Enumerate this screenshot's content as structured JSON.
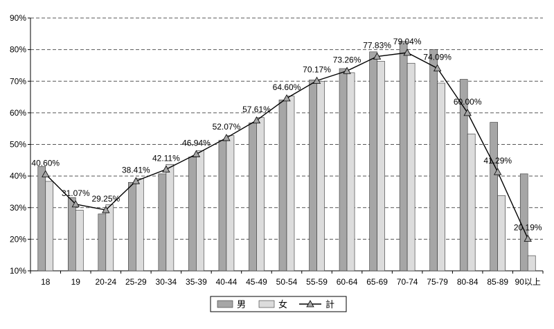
{
  "chart_data": {
    "type": "bar",
    "title": "",
    "xlabel": "",
    "ylabel": "",
    "ylim": [
      10,
      90
    ],
    "ytick_labels": [
      "10%",
      "20%",
      "30%",
      "40%",
      "50%",
      "60%",
      "70%",
      "80%",
      "90%"
    ],
    "yticks": [
      10,
      20,
      30,
      40,
      50,
      60,
      70,
      80,
      90
    ],
    "grid": true,
    "legend_position": "bottom",
    "categories": [
      "18",
      "19",
      "20-24",
      "25-29",
      "30-34",
      "35-39",
      "40-44",
      "45-49",
      "50-54",
      "55-59",
      "60-64",
      "65-69",
      "70-74",
      "75-79",
      "80-84",
      "85-89",
      "90以上"
    ],
    "series": [
      {
        "name": "男",
        "type": "bar",
        "color": "#a6a6a6",
        "values": [
          43.0,
          33.2,
          28.0,
          38.0,
          40.7,
          46.0,
          51.3,
          56.8,
          64.1,
          70.4,
          74.0,
          79.3,
          82.6,
          80.0,
          70.6,
          57.0,
          40.7
        ]
      },
      {
        "name": "女",
        "type": "bar",
        "color": "#dcdcdc",
        "values": [
          38.3,
          29.2,
          30.9,
          39.2,
          43.7,
          48.0,
          52.8,
          58.5,
          65.3,
          70.0,
          72.7,
          76.3,
          75.7,
          69.4,
          53.3,
          33.8,
          14.8
        ]
      },
      {
        "name": "計",
        "type": "line",
        "color": "#000000",
        "marker_color": "#a6a6a6",
        "values": [
          40.6,
          31.07,
          29.25,
          38.41,
          42.11,
          46.94,
          52.07,
          57.61,
          64.6,
          70.17,
          73.26,
          77.83,
          79.04,
          74.09,
          60.0,
          41.29,
          20.19
        ],
        "labels": [
          "40.60%",
          "31.07%",
          "29.25%",
          "38.41%",
          "42.11%",
          "46.94%",
          "52.07%",
          "57.61%",
          "64.60%",
          "70.17%",
          "73.26%",
          "77.83%",
          "79.04%",
          "74.09%",
          "60.00%",
          "41.29%",
          "20.19%"
        ]
      }
    ]
  }
}
